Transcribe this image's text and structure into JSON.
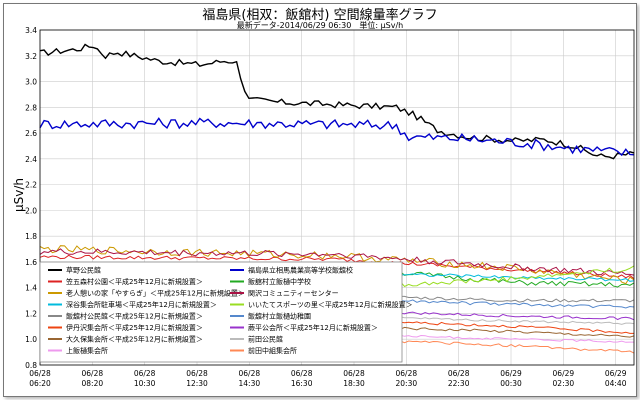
{
  "chart_data": {
    "type": "line",
    "title": "福島県(相双：飯舘村) 空間線量率グラフ",
    "subtitle": "最新データ-2014/06/29 06:30　単位: μSv/h",
    "ylabel": "μSv/h",
    "xlabel": "",
    "ylim": [
      0.8,
      3.4
    ],
    "yticks": [
      "0.8",
      "1.0",
      "1.2",
      "1.4",
      "1.6",
      "1.8",
      "2.0",
      "2.2",
      "2.4",
      "2.6",
      "2.8",
      "3.0",
      "3.2",
      "3.4"
    ],
    "xticks": [
      {
        "date": "06/28",
        "time": "06:20"
      },
      {
        "date": "06/28",
        "time": "08:20"
      },
      {
        "date": "06/28",
        "time": "10:30"
      },
      {
        "date": "06/28",
        "time": "12:30"
      },
      {
        "date": "06/28",
        "time": "14:30"
      },
      {
        "date": "06/28",
        "time": "16:30"
      },
      {
        "date": "06/28",
        "time": "18:30"
      },
      {
        "date": "06/28",
        "time": "20:30"
      },
      {
        "date": "06/28",
        "time": "22:30"
      },
      {
        "date": "06/29",
        "time": "00:30"
      },
      {
        "date": "06/29",
        "time": "02:30"
      },
      {
        "date": "06/29",
        "time": "04:40"
      }
    ],
    "x_start": "2014-06-28 06:20",
    "x_end": "2014-06-29 06:30",
    "grid": true,
    "legend_position": "bottom-left",
    "series": [
      {
        "name": "草野公民館",
        "color": "#000000",
        "shape": [
          [
            0,
            3.22
          ],
          [
            0.06,
            3.25
          ],
          [
            0.09,
            3.28
          ],
          [
            0.11,
            3.2
          ],
          [
            0.13,
            3.23
          ],
          [
            0.2,
            3.16
          ],
          [
            0.27,
            3.13
          ],
          [
            0.31,
            3.16
          ],
          [
            0.33,
            3.16
          ],
          [
            0.35,
            2.86
          ],
          [
            0.4,
            2.84
          ],
          [
            0.5,
            2.82
          ],
          [
            0.6,
            2.8
          ],
          [
            0.63,
            2.74
          ],
          [
            0.67,
            2.62
          ],
          [
            0.72,
            2.57
          ],
          [
            0.8,
            2.54
          ],
          [
            0.85,
            2.55
          ],
          [
            0.9,
            2.5
          ],
          [
            0.94,
            2.42
          ],
          [
            0.96,
            2.42
          ],
          [
            1,
            2.44
          ]
        ],
        "noise": 0.025
      },
      {
        "name": "福島県立相馬農業高等学校飯舘校",
        "color": "#0000cc",
        "shape": [
          [
            0,
            2.67
          ],
          [
            0.3,
            2.68
          ],
          [
            0.6,
            2.66
          ],
          [
            0.62,
            2.57
          ],
          [
            0.7,
            2.56
          ],
          [
            0.8,
            2.53
          ],
          [
            0.9,
            2.48
          ],
          [
            1,
            2.44
          ]
        ],
        "noise": 0.04
      },
      {
        "name": "笠五森村公園＜平成25年12月に新規設置＞",
        "color": "#dd2222",
        "shape": [
          [
            0,
            1.64
          ],
          [
            0.5,
            1.62
          ],
          [
            0.8,
            1.54
          ],
          [
            1,
            1.48
          ]
        ],
        "noise": 0.015
      },
      {
        "name": "飯舘村立飯樋中学校",
        "color": "#22aa22",
        "shape": [
          [
            0,
            1.58
          ],
          [
            0.5,
            1.56
          ],
          [
            0.8,
            1.44
          ],
          [
            1,
            1.42
          ]
        ],
        "noise": 0.02
      },
      {
        "name": "老人憩いの家「やすらぎ」＜平成25年12月に新規設置＞",
        "color": "#cc9900",
        "shape": [
          [
            0,
            1.7
          ],
          [
            0.5,
            1.65
          ],
          [
            0.8,
            1.55
          ],
          [
            1,
            1.45
          ]
        ],
        "noise": 0.03
      },
      {
        "name": "関沢コミュニティーセンター",
        "color": "#aa1144",
        "shape": [
          [
            0,
            1.68
          ],
          [
            0.5,
            1.66
          ],
          [
            0.8,
            1.56
          ],
          [
            1,
            1.5
          ]
        ],
        "noise": 0.025
      },
      {
        "name": "深谷集会所駐車場＜平成25年12月に新規設置＞",
        "color": "#00bbdd",
        "shape": [
          [
            0,
            1.54
          ],
          [
            0.5,
            1.52
          ],
          [
            0.8,
            1.48
          ],
          [
            1,
            1.46
          ]
        ],
        "noise": 0.012
      },
      {
        "name": "いいたてスポーツの里＜平成25年12月に新規設置＞",
        "color": "#99dd22",
        "shape": [
          [
            0,
            1.42
          ],
          [
            0.5,
            1.4
          ],
          [
            0.8,
            1.47
          ],
          [
            1,
            1.55
          ]
        ],
        "noise": 0.02
      },
      {
        "name": "飯舘村公民館＜平成25年12月に新規設置＞",
        "color": "#888888",
        "shape": [
          [
            0,
            1.36
          ],
          [
            0.5,
            1.34
          ],
          [
            0.8,
            1.3
          ],
          [
            1,
            1.3
          ]
        ],
        "noise": 0.012
      },
      {
        "name": "飯舘村立飯樋幼稚園",
        "color": "#5588cc",
        "shape": [
          [
            0,
            1.33
          ],
          [
            0.5,
            1.31
          ],
          [
            0.8,
            1.27
          ],
          [
            1,
            1.25
          ]
        ],
        "noise": 0.012
      },
      {
        "name": "伊丹沢集会所＜平成25年12月に新規設置＞",
        "color": "#ee4411",
        "shape": [
          [
            0,
            1.2
          ],
          [
            0.5,
            1.15
          ],
          [
            0.8,
            1.1
          ],
          [
            1,
            1.05
          ]
        ],
        "noise": 0.01
      },
      {
        "name": "蕨平公会所＜平成25年12月に新規設置＞",
        "color": "#9933cc",
        "shape": [
          [
            0,
            1.25
          ],
          [
            0.5,
            1.22
          ],
          [
            0.8,
            1.18
          ],
          [
            1,
            1.16
          ]
        ],
        "noise": 0.01
      },
      {
        "name": "大久保集会所＜平成25年12月に新規設置＞",
        "color": "#996633",
        "shape": [
          [
            0,
            1.14
          ],
          [
            0.5,
            1.1
          ],
          [
            0.8,
            1.06
          ],
          [
            1,
            1.02
          ]
        ],
        "noise": 0.01
      },
      {
        "name": "前田公民館",
        "color": "#bbbbbb",
        "shape": [
          [
            0,
            1.2
          ],
          [
            0.5,
            1.18
          ],
          [
            0.8,
            1.14
          ],
          [
            1,
            1.12
          ]
        ],
        "noise": 0.008
      },
      {
        "name": "上飯樋集会所",
        "color": "#ee99ee",
        "shape": [
          [
            0,
            1.07
          ],
          [
            0.5,
            1.04
          ],
          [
            0.8,
            1.0
          ],
          [
            1,
            0.98
          ]
        ],
        "noise": 0.008
      },
      {
        "name": "前田中組集会所",
        "color": "#ff8855",
        "shape": [
          [
            0,
            1.05
          ],
          [
            0.5,
            1.0
          ],
          [
            0.8,
            0.95
          ],
          [
            1,
            0.9
          ]
        ],
        "noise": 0.01
      }
    ]
  }
}
